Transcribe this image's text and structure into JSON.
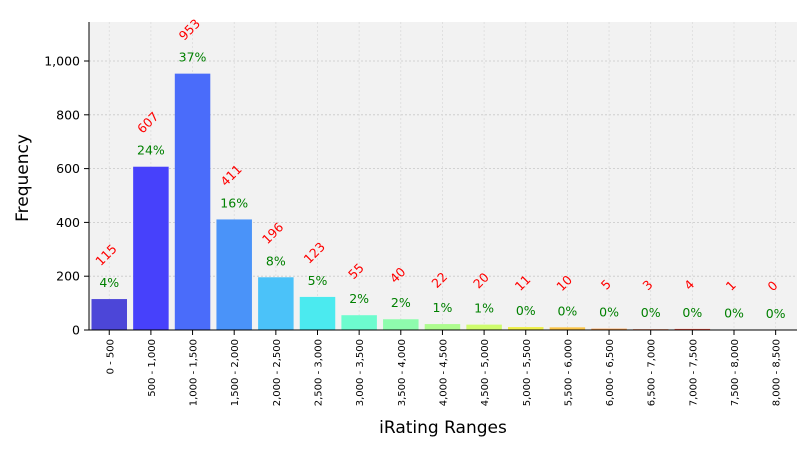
{
  "chart_data": {
    "type": "bar",
    "xlabel": "iRating Ranges",
    "ylabel": "Frequency",
    "ylim": [
      0,
      1145
    ],
    "yticks": [
      {
        "value": 0,
        "label": "0"
      },
      {
        "value": 200,
        "label": "200"
      },
      {
        "value": 400,
        "label": "400"
      },
      {
        "value": 600,
        "label": "600"
      },
      {
        "value": 800,
        "label": "800"
      },
      {
        "value": 1000,
        "label": "1,000"
      }
    ],
    "grid": true,
    "categories": [
      "0 - 500",
      "500 - 1,000",
      "1,000 - 1,500",
      "1,500 - 2,000",
      "2,000 - 2,500",
      "2,500 - 3,000",
      "3,000 - 3,500",
      "3,500 - 4,000",
      "4,000 - 4,500",
      "4,500 - 5,000",
      "5,000 - 5,500",
      "5,500 - 6,000",
      "6,000 - 6,500",
      "6,500 - 7,000",
      "7,000 - 7,500",
      "7,500 - 8,000",
      "8,000 - 8,500"
    ],
    "values": [
      115,
      607,
      953,
      411,
      196,
      123,
      55,
      40,
      22,
      20,
      11,
      10,
      5,
      3,
      4,
      1,
      0
    ],
    "count_labels": [
      "115",
      "607",
      "953",
      "411",
      "196",
      "123",
      "55",
      "40",
      "22",
      "20",
      "11",
      "10",
      "5",
      "3",
      "4",
      "1",
      "0"
    ],
    "percent_labels": [
      "4%",
      "24%",
      "37%",
      "16%",
      "8%",
      "5%",
      "2%",
      "2%",
      "1%",
      "1%",
      "0%",
      "0%",
      "0%",
      "0%",
      "0%",
      "0%",
      "0%"
    ],
    "colors": [
      "#4c46d8",
      "#4741fb",
      "#4a6cfa",
      "#4a93f9",
      "#4bc2f9",
      "#4beaef",
      "#6dfcce",
      "#8efcad",
      "#adfc8e",
      "#cefc6d",
      "#eff04c",
      "#fcc649",
      "#fc9b47",
      "#fc7444",
      "#fc5242",
      "#f33f40",
      "#dc4240"
    ],
    "count_label_color": "#ff0000",
    "percent_label_color": "#008000"
  }
}
